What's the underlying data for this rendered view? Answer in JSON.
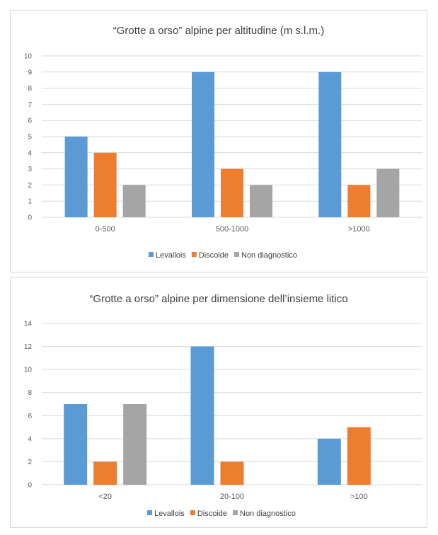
{
  "chart_data": [
    {
      "type": "bar",
      "title": "“Grotte a orso” alpine per altitudine (m s.l.m.)",
      "categories": [
        "0-500",
        "500-1000",
        ">1000"
      ],
      "series": [
        {
          "name": "Levallois",
          "color": "#5B9BD5",
          "values": [
            5,
            9,
            9
          ]
        },
        {
          "name": "Discoide",
          "color": "#ED7D31",
          "values": [
            4,
            3,
            2
          ]
        },
        {
          "name": "Non diagnostico",
          "color": "#A5A5A5",
          "values": [
            2,
            2,
            3
          ]
        }
      ],
      "ylim": [
        0,
        10
      ],
      "yticks": [
        0,
        1,
        2,
        3,
        4,
        5,
        6,
        7,
        8,
        9,
        10
      ],
      "grid": true,
      "legend": "bottom"
    },
    {
      "type": "bar",
      "title": "“Grotte a orso” alpine per dimensione dell’insieme litico",
      "categories": [
        "<20",
        "20-100",
        ">100"
      ],
      "series": [
        {
          "name": "Levallois",
          "color": "#5B9BD5",
          "values": [
            7,
            12,
            4
          ]
        },
        {
          "name": "Discoide",
          "color": "#ED7D31",
          "values": [
            2,
            2,
            5
          ]
        },
        {
          "name": "Non diagnostico",
          "color": "#A5A5A5",
          "values": [
            7,
            0,
            0
          ]
        }
      ],
      "ylim": [
        0,
        14
      ],
      "yticks": [
        0,
        2,
        4,
        6,
        8,
        10,
        12,
        14
      ],
      "grid": true,
      "legend": "bottom"
    }
  ]
}
